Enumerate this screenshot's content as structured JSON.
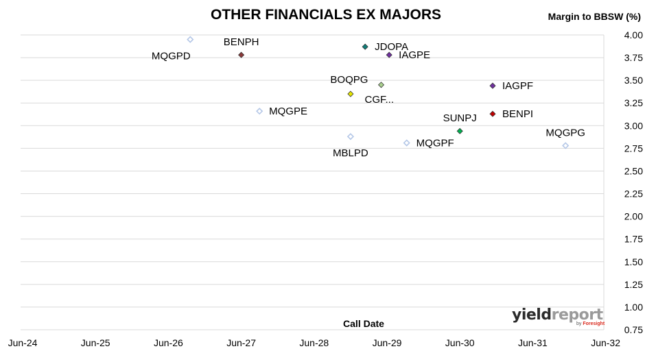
{
  "chart_data": {
    "type": "scatter",
    "title": "OTHER FINANCIALS EX MAJORS",
    "ylabel": "Margin to BBSW (%)",
    "xlabel": "Call Date",
    "ylim": [
      0.75,
      4.0
    ],
    "yticks": [
      "0.75",
      "1.00",
      "1.25",
      "1.50",
      "1.75",
      "2.00",
      "2.25",
      "2.50",
      "2.75",
      "3.00",
      "3.25",
      "3.50",
      "3.75",
      "4.00"
    ],
    "xticks": [
      "Jun-24",
      "Jun-25",
      "Jun-26",
      "Jun-27",
      "Jun-28",
      "Jun-29",
      "Jun-30",
      "Jun-31",
      "Jun-32"
    ],
    "xlim": [
      0,
      8
    ],
    "grid": "horizontal",
    "points": [
      {
        "label": "MQGPD",
        "x": 2.3,
        "y": 3.95,
        "color": "#b4c7e7",
        "hollow": true,
        "label_pos": "below-left"
      },
      {
        "label": "BENPH",
        "x": 3.0,
        "y": 3.78,
        "color": "#8b3a3a",
        "hollow": false,
        "label_pos": "above"
      },
      {
        "label": "JDOPA",
        "x": 4.7,
        "y": 3.87,
        "color": "#0f7f7a",
        "hollow": false,
        "label_pos": "right"
      },
      {
        "label": "IAGPE",
        "x": 5.03,
        "y": 3.78,
        "color": "#7030a0",
        "hollow": false,
        "label_pos": "right"
      },
      {
        "label": "BOQPG",
        "x": 4.5,
        "y": 3.35,
        "color": "#e6e600",
        "hollow": false,
        "label_pos": "above-left"
      },
      {
        "label": "CGF...",
        "x": 4.92,
        "y": 3.45,
        "color": "#a9d08e",
        "hollow": false,
        "label_pos": "below-right"
      },
      {
        "label": "IAGPF",
        "x": 6.45,
        "y": 3.44,
        "color": "#7030a0",
        "hollow": false,
        "label_pos": "right"
      },
      {
        "label": "MQGPE",
        "x": 3.25,
        "y": 3.16,
        "color": "#b4c7e7",
        "hollow": true,
        "label_pos": "right"
      },
      {
        "label": "BENPI",
        "x": 6.45,
        "y": 3.13,
        "color": "#c00000",
        "hollow": false,
        "label_pos": "right"
      },
      {
        "label": "SUNPJ",
        "x": 6.0,
        "y": 2.94,
        "color": "#00b050",
        "hollow": false,
        "label_pos": "above"
      },
      {
        "label": "MBLPD",
        "x": 4.5,
        "y": 2.88,
        "color": "#b4c7e7",
        "hollow": true,
        "label_pos": "below"
      },
      {
        "label": "MQGPF",
        "x": 5.27,
        "y": 2.81,
        "color": "#b4c7e7",
        "hollow": true,
        "label_pos": "right"
      },
      {
        "label": "MQGPG",
        "x": 7.45,
        "y": 2.78,
        "color": "#b4c7e7",
        "hollow": true,
        "label_pos": "above"
      }
    ]
  },
  "logo": {
    "yield": "yield",
    "report": "report",
    "by": "by",
    "foresight": "Foresight"
  }
}
